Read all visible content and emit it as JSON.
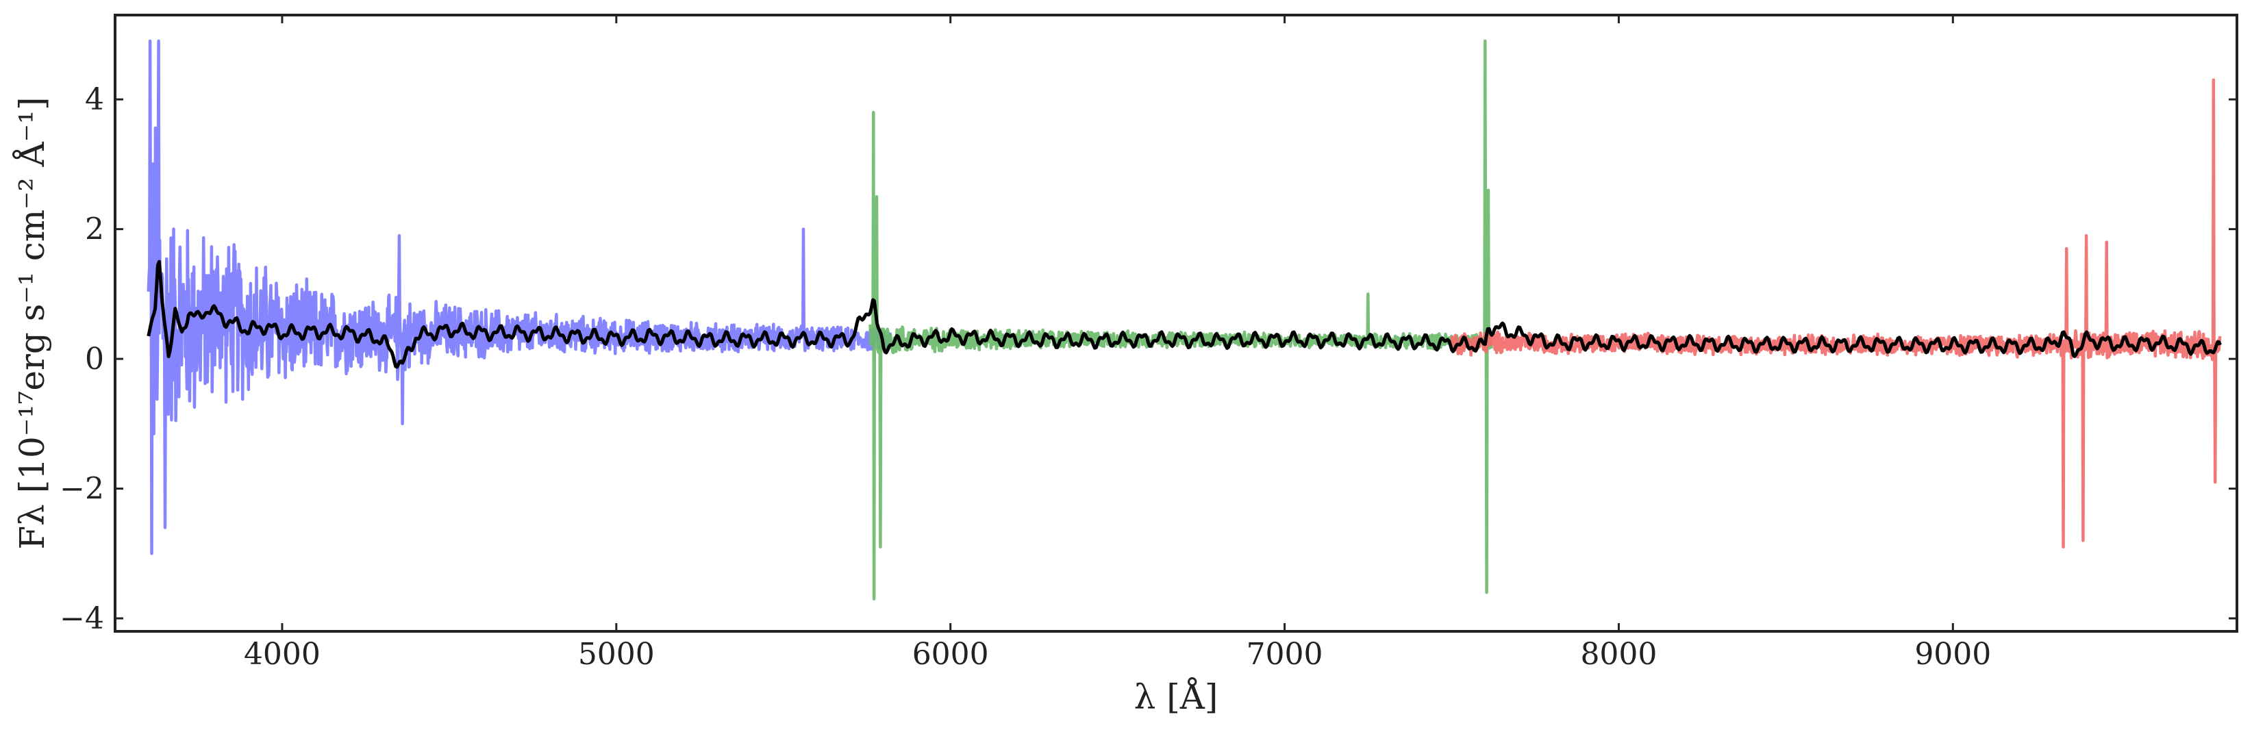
{
  "chart_data": {
    "type": "line",
    "title": "",
    "xlabel": "λ [Å]",
    "ylabel": "Fλ [10⁻¹⁷erg s⁻¹ cm⁻² Å⁻¹]",
    "xlim": [
      3500,
      9850
    ],
    "ylim": [
      -4.2,
      5.3
    ],
    "x_ticks": [
      4000,
      5000,
      6000,
      7000,
      8000,
      9000
    ],
    "x_tick_labels": [
      "4000",
      "5000",
      "6000",
      "7000",
      "8000",
      "9000"
    ],
    "y_ticks": [
      -4,
      -2,
      0,
      2,
      4
    ],
    "y_tick_labels": [
      "−4",
      "−2",
      "0",
      "2",
      "4"
    ],
    "grid": false,
    "legend": "none",
    "series": [
      {
        "color": "#7b7bff",
        "x_range": [
          3600,
          5820
        ],
        "x": [
          3600,
          3620,
          3640,
          3660,
          3700,
          3750,
          3800,
          3850,
          3900,
          4000,
          4100,
          4200,
          4300,
          4350,
          4400,
          4500,
          4600,
          4800,
          5000,
          5200,
          5400,
          5560,
          5600,
          5700,
          5800
        ],
        "y": [
          0.5,
          0.8,
          0.7,
          0.6,
          0.6,
          0.5,
          0.7,
          0.6,
          0.5,
          0.45,
          0.4,
          0.4,
          0.35,
          0.3,
          0.4,
          0.42,
          0.4,
          0.38,
          0.35,
          0.33,
          0.32,
          0.32,
          0.32,
          0.3,
          0.3
        ],
        "noise_amplitude": [
          2.8,
          3.6,
          2.4,
          2.0,
          1.9,
          1.6,
          1.5,
          1.4,
          1.3,
          1.0,
          0.8,
          0.7,
          0.65,
          0.8,
          0.55,
          0.5,
          0.45,
          0.35,
          0.3,
          0.27,
          0.24,
          0.22,
          0.22,
          0.2,
          0.2
        ],
        "spikes": [
          [
            3605,
            4.9
          ],
          [
            3610,
            -3.0
          ],
          [
            3630,
            4.9
          ],
          [
            3650,
            -2.6
          ],
          [
            4350,
            1.9
          ],
          [
            4360,
            -1.0
          ],
          [
            5560,
            2.0
          ]
        ]
      },
      {
        "color": "#6cbb6c",
        "x_range": [
          5760,
          7620
        ],
        "x": [
          5760,
          5800,
          5900,
          6000,
          6200,
          6400,
          6600,
          6800,
          7000,
          7200,
          7400,
          7600,
          7620
        ],
        "y": [
          0.3,
          0.3,
          0.3,
          0.3,
          0.3,
          0.3,
          0.3,
          0.3,
          0.28,
          0.28,
          0.27,
          0.27,
          0.27
        ],
        "noise_amplitude": [
          0.35,
          0.3,
          0.22,
          0.2,
          0.17,
          0.15,
          0.14,
          0.13,
          0.12,
          0.12,
          0.13,
          0.16,
          0.16
        ],
        "spikes": [
          [
            5770,
            3.8
          ],
          [
            5772,
            -3.7
          ],
          [
            5780,
            2.5
          ],
          [
            5790,
            -2.9
          ],
          [
            7250,
            1.0
          ],
          [
            7600,
            4.9
          ],
          [
            7605,
            -3.6
          ],
          [
            7610,
            2.6
          ]
        ]
      },
      {
        "color": "#f26b6b",
        "x_range": [
          7500,
          9800
        ],
        "x": [
          7500,
          7600,
          7800,
          8000,
          8200,
          8400,
          8600,
          8800,
          9000,
          9200,
          9400,
          9600,
          9800
        ],
        "y": [
          0.25,
          0.25,
          0.24,
          0.24,
          0.23,
          0.22,
          0.22,
          0.22,
          0.21,
          0.21,
          0.22,
          0.22,
          0.2
        ],
        "noise_amplitude": [
          0.2,
          0.2,
          0.17,
          0.17,
          0.17,
          0.17,
          0.18,
          0.18,
          0.18,
          0.2,
          0.22,
          0.24,
          0.24
        ],
        "spikes": [
          [
            9330,
            -2.9
          ],
          [
            9340,
            1.7
          ],
          [
            9390,
            -2.8
          ],
          [
            9400,
            1.9
          ],
          [
            9460,
            1.8
          ],
          [
            9780,
            4.3
          ],
          [
            9785,
            -1.9
          ]
        ]
      },
      {
        "color": "#000000",
        "x": [
          3600,
          3620,
          3630,
          3640,
          3660,
          3680,
          3700,
          3720,
          3750,
          3780,
          3800,
          3850,
          3900,
          3950,
          4000,
          4100,
          4200,
          4300,
          4340,
          4360,
          4400,
          4500,
          4600,
          4700,
          4800,
          4900,
          5000,
          5100,
          5200,
          5300,
          5400,
          5500,
          5600,
          5700,
          5770,
          5780,
          5800,
          5900,
          6000,
          6200,
          6400,
          6600,
          6800,
          7000,
          7200,
          7400,
          7600,
          7610,
          7800,
          8000,
          8200,
          8400,
          8600,
          8800,
          9000,
          9200,
          9300,
          9330,
          9360,
          9400,
          9500,
          9600,
          9700,
          9800
        ],
        "y": [
          0.45,
          0.8,
          1.5,
          0.9,
          0.1,
          0.7,
          0.35,
          0.75,
          0.6,
          0.8,
          0.7,
          0.55,
          0.45,
          0.5,
          0.4,
          0.42,
          0.4,
          0.3,
          0.0,
          -0.1,
          0.35,
          0.45,
          0.4,
          0.4,
          0.38,
          0.35,
          0.32,
          0.35,
          0.32,
          0.3,
          0.3,
          0.3,
          0.3,
          0.3,
          0.9,
          0.5,
          0.2,
          0.3,
          0.35,
          0.3,
          0.28,
          0.3,
          0.28,
          0.3,
          0.28,
          0.26,
          0.2,
          0.5,
          0.25,
          0.25,
          0.24,
          0.22,
          0.22,
          0.22,
          0.21,
          0.2,
          0.22,
          0.4,
          0.1,
          0.3,
          0.22,
          0.25,
          0.2,
          0.15
        ]
      }
    ]
  }
}
